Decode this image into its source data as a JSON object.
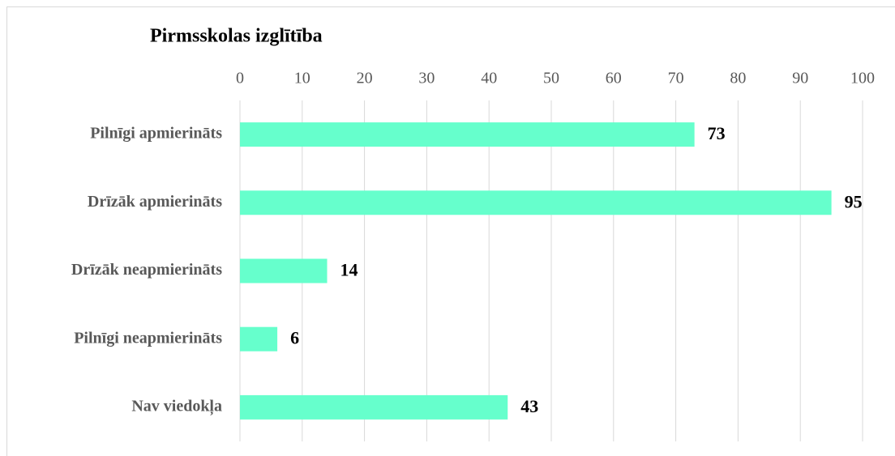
{
  "chart_data": {
    "type": "bar",
    "orientation": "horizontal",
    "title": "Pirmsskolas izglītība",
    "categories": [
      "Pilnīgi apmierināts",
      "Drīzāk apmierināts",
      "Drīzāk neapmierināts",
      "Pilnīgi neapmierināts",
      "Nav viedokļa"
    ],
    "values": [
      73,
      95,
      14,
      6,
      43
    ],
    "color": "#66ffcc",
    "xlim": [
      0,
      100
    ],
    "xticks": [
      0,
      10,
      20,
      30,
      40,
      50,
      60,
      70,
      80,
      90,
      100
    ],
    "grid": true
  }
}
